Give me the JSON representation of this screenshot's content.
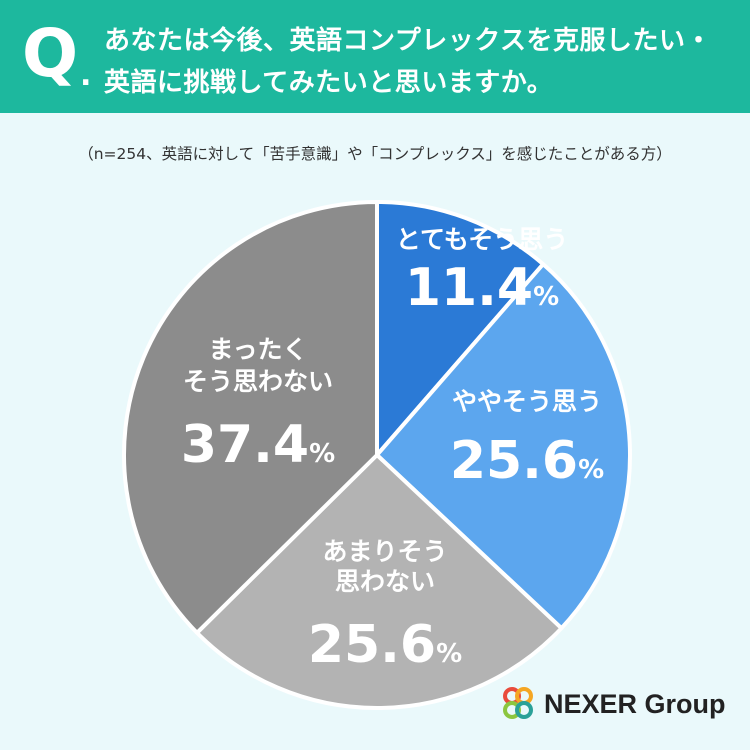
{
  "header": {
    "q_mark": "Q",
    "q_dot": ".",
    "line1": "あなたは今後、英語コンプレックスを克服したい・",
    "line2": "英語に挑戦してみたいと思いますか。"
  },
  "subtitle": "（n=254、英語に対して「苦手意識」や「コンプレックス」を感じたことがある方）",
  "chart_data": {
    "type": "pie",
    "unit": "%",
    "slices": [
      {
        "label_lines": [
          "とてもそう思う"
        ],
        "value": 11.4,
        "value_text": "11.4",
        "color": "#2b7ad6"
      },
      {
        "label_lines": [
          "ややそう思う"
        ],
        "value": 25.6,
        "value_text": "25.6",
        "color": "#5ca6ee"
      },
      {
        "label_lines": [
          "あまりそう",
          "思わない"
        ],
        "value": 25.6,
        "value_text": "25.6",
        "color": "#b3b3b3"
      },
      {
        "label_lines": [
          "まったく",
          "そう思わない"
        ],
        "value": 37.4,
        "value_text": "37.4",
        "color": "#8c8c8c"
      }
    ]
  },
  "logo": {
    "text": "NEXER Group",
    "colors": [
      "#e94b3c",
      "#f5a623",
      "#8cc63f",
      "#2aa198"
    ]
  }
}
